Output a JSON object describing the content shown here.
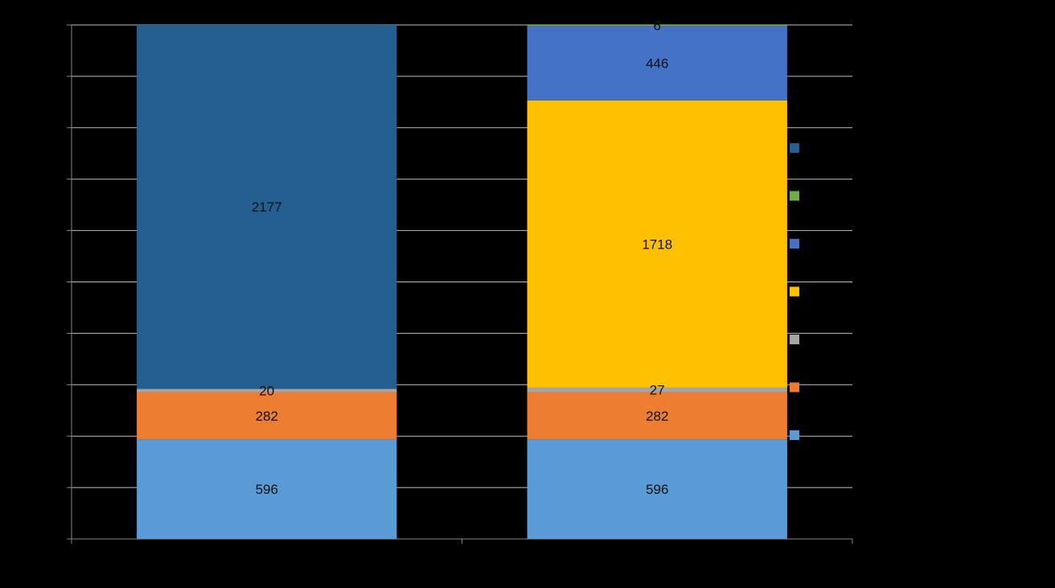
{
  "chart_data": {
    "type": "bar",
    "stacked": true,
    "categories": [
      "",
      ""
    ],
    "ylim": [
      0,
      3075
    ],
    "grid": true,
    "legend_placement": "right",
    "series": [
      {
        "values": [
          596,
          596
        ],
        "labels": [
          "596",
          "596"
        ],
        "color": "#5B9BD5"
      },
      {
        "values": [
          282,
          282
        ],
        "labels": [
          "282",
          "282"
        ],
        "color": "#ED7D31"
      },
      {
        "values": [
          20,
          27
        ],
        "labels": [
          "20",
          "27"
        ],
        "color": "#A5A5A5"
      },
      {
        "values": [
          0,
          1718
        ],
        "labels": [
          "",
          "1718"
        ],
        "color": "#FFC000"
      },
      {
        "values": [
          0,
          446
        ],
        "labels": [
          "",
          "446"
        ],
        "color": "#4472C4"
      },
      {
        "values": [
          0,
          6
        ],
        "labels": [
          "",
          "6"
        ],
        "color": "#70AD47"
      },
      {
        "values": [
          2177,
          0
        ],
        "labels": [
          "2177",
          ""
        ],
        "color": "#255E91"
      }
    ],
    "legend_order": [
      6,
      5,
      4,
      3,
      2,
      1,
      0
    ]
  }
}
